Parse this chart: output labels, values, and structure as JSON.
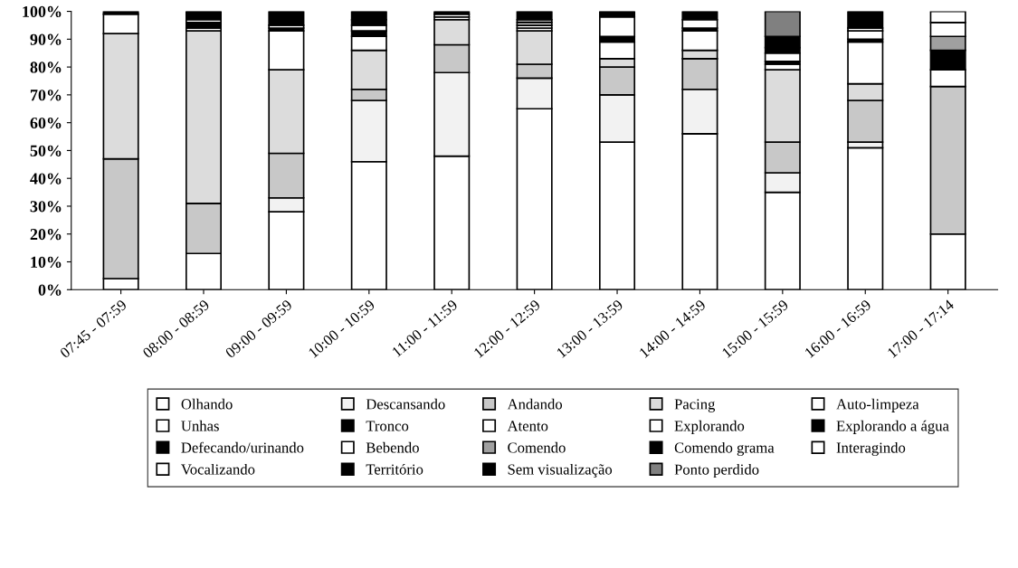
{
  "chart_data": {
    "type": "bar",
    "stacked": true,
    "categories": [
      "07:45 - 07:59",
      "08:00 - 08:59",
      "09:00 - 09:59",
      "10:00 - 10:59",
      "11:00 - 11:59",
      "12:00 - 12:59",
      "13:00 - 13:59",
      "14:00 - 14:59",
      "15:00 - 15:59",
      "16:00 - 16:59",
      "17:00 - 17:14"
    ],
    "series": [
      {
        "name": "Olhando",
        "color": "#ffffff",
        "values": [
          4,
          13,
          28,
          46,
          48,
          65,
          53,
          56,
          35,
          51,
          20
        ]
      },
      {
        "name": "Descansando",
        "color": "#f2f2f2",
        "values": [
          0,
          0,
          5,
          22,
          30,
          11,
          17,
          16,
          7,
          2,
          0
        ]
      },
      {
        "name": "Andando",
        "color": "#c8c8c8",
        "values": [
          43,
          18,
          16,
          4,
          10,
          5,
          10,
          11,
          11,
          15,
          53
        ]
      },
      {
        "name": "Pacing",
        "color": "#dcdcdc",
        "values": [
          45,
          62,
          30,
          14,
          9,
          12,
          3,
          3,
          26,
          6,
          0
        ]
      },
      {
        "name": "Auto-limpeza",
        "color": "#ffffff",
        "values": [
          7,
          0,
          14,
          5,
          1,
          1,
          6,
          7,
          2,
          15,
          0
        ]
      },
      {
        "name": "Unhas",
        "color": "#ffffff",
        "values": [
          0,
          1,
          0,
          0,
          0,
          0,
          0,
          0,
          0,
          0,
          0
        ]
      },
      {
        "name": "Tronco",
        "color": "#000000",
        "values": [
          1,
          2,
          1,
          2,
          0,
          0,
          2,
          1,
          1,
          1,
          0
        ]
      },
      {
        "name": "Atento",
        "color": "#ffffff",
        "values": [
          0,
          1,
          1,
          2,
          1,
          1,
          0,
          0,
          3,
          3,
          6
        ]
      },
      {
        "name": "Explorando",
        "color": "#ffffff",
        "values": [
          0,
          0,
          0,
          0,
          0,
          1,
          0,
          0,
          0,
          1,
          0
        ]
      },
      {
        "name": "Explorando a água",
        "color": "#000000",
        "values": [
          0,
          2,
          0,
          2,
          0,
          0,
          0,
          0,
          0,
          0,
          7
        ]
      },
      {
        "name": "Defecando/urinando",
        "color": "#000000",
        "values": [
          0,
          0,
          0,
          0,
          0,
          0,
          0,
          0,
          0,
          0,
          0
        ]
      },
      {
        "name": "Bebendo",
        "color": "#ffffff",
        "values": [
          0,
          0,
          0,
          0,
          0,
          0,
          0,
          0,
          0,
          0,
          0
        ]
      },
      {
        "name": "Comendo",
        "color": "#a0a0a0",
        "values": [
          0,
          0,
          0,
          0,
          0,
          1,
          0,
          0,
          0,
          0,
          5
        ]
      },
      {
        "name": "Comendo grama",
        "color": "#000000",
        "values": [
          0,
          0,
          0,
          0,
          0,
          0,
          0,
          0,
          2,
          0,
          0
        ]
      },
      {
        "name": "Interagindo",
        "color": "#ffffff",
        "values": [
          0,
          0,
          0,
          0,
          0,
          0,
          7,
          3,
          0,
          0,
          5
        ]
      },
      {
        "name": "Vocalizando",
        "color": "#ffffff",
        "values": [
          0,
          0,
          0,
          0,
          0,
          0,
          0,
          0,
          0,
          0,
          4
        ]
      },
      {
        "name": "Território",
        "color": "#000000",
        "values": [
          0,
          0,
          0,
          0,
          0,
          0,
          0,
          0,
          0,
          0,
          0
        ]
      },
      {
        "name": "Sem visualização",
        "color": "#000000",
        "values": [
          0,
          1,
          5,
          3,
          1,
          3,
          2,
          3,
          4,
          6,
          0
        ]
      },
      {
        "name": "Ponto perdido",
        "color": "#808080",
        "values": [
          0,
          0,
          0,
          0,
          0,
          0,
          0,
          0,
          9,
          0,
          0
        ]
      }
    ],
    "ylim": [
      0,
      100
    ],
    "yticks": [
      {
        "value": 0,
        "label": "0%"
      },
      {
        "value": 10,
        "label": "10%"
      },
      {
        "value": 20,
        "label": "20%"
      },
      {
        "value": 30,
        "label": "30%"
      },
      {
        "value": 40,
        "label": "40%"
      },
      {
        "value": 50,
        "label": "50%"
      },
      {
        "value": 60,
        "label": "60%"
      },
      {
        "value": 70,
        "label": "70%"
      },
      {
        "value": 80,
        "label": "80%"
      },
      {
        "value": 90,
        "label": "90%"
      },
      {
        "value": 100,
        "label": "100%"
      }
    ],
    "grid": false,
    "legend": "bottom"
  }
}
